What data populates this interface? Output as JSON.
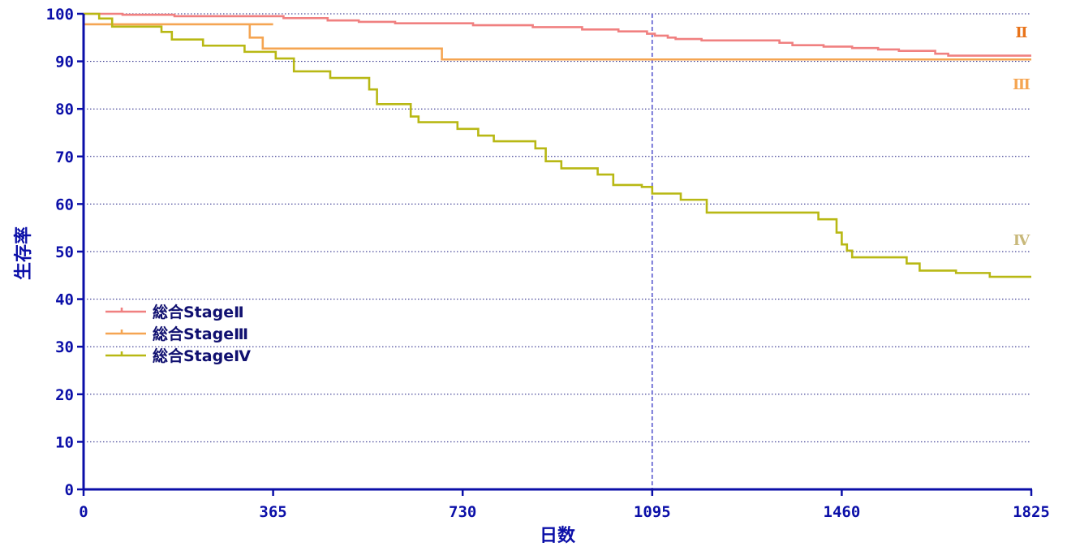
{
  "chart_data": {
    "type": "line",
    "title": "",
    "xlabel": "日数",
    "ylabel": "生存率",
    "xlim": [
      0,
      1825
    ],
    "ylim": [
      0,
      100
    ],
    "x_ticks": [
      0,
      365,
      730,
      1095,
      1460,
      1825
    ],
    "y_ticks": [
      0,
      10,
      20,
      30,
      40,
      50,
      60,
      70,
      80,
      90,
      100
    ],
    "grid": "horizontal dotted",
    "reference_line_x": 1095,
    "legend_position": "lower-left",
    "colors": {
      "axis": "#0b0fa8",
      "grid": "#1a1a80",
      "reference": "#2222c0"
    },
    "series": [
      {
        "name": "総合StageⅡ",
        "end_label": "Ⅱ",
        "color": "#f08080",
        "label_color": "#e8731a",
        "x": [
          0,
          75,
          75,
          175,
          175,
          385,
          385,
          470,
          470,
          530,
          530,
          600,
          600,
          750,
          750,
          865,
          865,
          960,
          960,
          1030,
          1030,
          1085,
          1085,
          1100,
          1100,
          1125,
          1125,
          1140,
          1140,
          1190,
          1190,
          1340,
          1340,
          1365,
          1365,
          1425,
          1425,
          1480,
          1480,
          1530,
          1530,
          1570,
          1570,
          1640,
          1640,
          1665,
          1665,
          1825
        ],
        "y": [
          100,
          100,
          99.8,
          99.8,
          99.5,
          99.5,
          99.1,
          99.1,
          98.6,
          98.6,
          98.3,
          98.3,
          98,
          98,
          97.6,
          97.6,
          97.2,
          97.2,
          96.7,
          96.7,
          96.3,
          96.3,
          95.8,
          95.8,
          95.4,
          95.4,
          95,
          95,
          94.7,
          94.7,
          94.4,
          94.4,
          93.9,
          93.9,
          93.4,
          93.4,
          93.1,
          93.1,
          92.8,
          92.8,
          92.5,
          92.5,
          92.2,
          92.2,
          91.6,
          91.6,
          91.2,
          91.2
        ]
      },
      {
        "name": "総合StageⅢ",
        "end_label": "Ⅲ",
        "color": "#f5a552",
        "label_color": "#f5a552",
        "x": [
          0,
          365,
          365,
          320,
          320,
          345,
          345,
          690,
          690,
          1825
        ],
        "y": [
          97.8,
          97.8,
          97.8,
          97.8,
          95,
          95,
          92.7,
          92.7,
          90.4,
          90.4
        ]
      },
      {
        "name": "総合StageⅣ",
        "end_label": "Ⅳ",
        "color": "#b8b814",
        "label_color": "#c8b87a",
        "x": [
          0,
          30,
          30,
          55,
          55,
          150,
          150,
          170,
          170,
          230,
          230,
          310,
          310,
          370,
          370,
          405,
          405,
          475,
          475,
          550,
          550,
          565,
          565,
          630,
          630,
          645,
          645,
          720,
          720,
          760,
          760,
          790,
          790,
          870,
          870,
          890,
          890,
          920,
          920,
          990,
          990,
          1020,
          1020,
          1075,
          1075,
          1095,
          1095,
          1150,
          1150,
          1200,
          1200,
          1415,
          1415,
          1450,
          1450,
          1460,
          1460,
          1470,
          1470,
          1480,
          1480,
          1585,
          1585,
          1610,
          1610,
          1680,
          1680,
          1745,
          1745,
          1785,
          1785,
          1825
        ],
        "y": [
          100,
          100,
          99,
          99,
          97.3,
          97.3,
          96.2,
          96.2,
          94.6,
          94.6,
          93.3,
          93.3,
          92,
          92,
          90.6,
          90.6,
          87.9,
          87.9,
          86.5,
          86.5,
          84.1,
          84.1,
          81,
          81,
          78.4,
          78.4,
          77.2,
          77.2,
          75.8,
          75.8,
          74.4,
          74.4,
          73.2,
          73.2,
          71.7,
          71.7,
          69,
          69,
          67.5,
          67.5,
          66.2,
          66.2,
          64,
          64,
          63.6,
          63.6,
          62.2,
          62.2,
          60.9,
          60.9,
          58.2,
          58.2,
          56.8,
          56.8,
          54,
          54,
          51.5,
          51.5,
          50.2,
          50.2,
          48.8,
          48.8,
          47.5,
          47.5,
          46,
          46,
          45.5,
          45.5,
          44.7,
          44.7,
          44.7,
          44.7
        ]
      }
    ]
  }
}
